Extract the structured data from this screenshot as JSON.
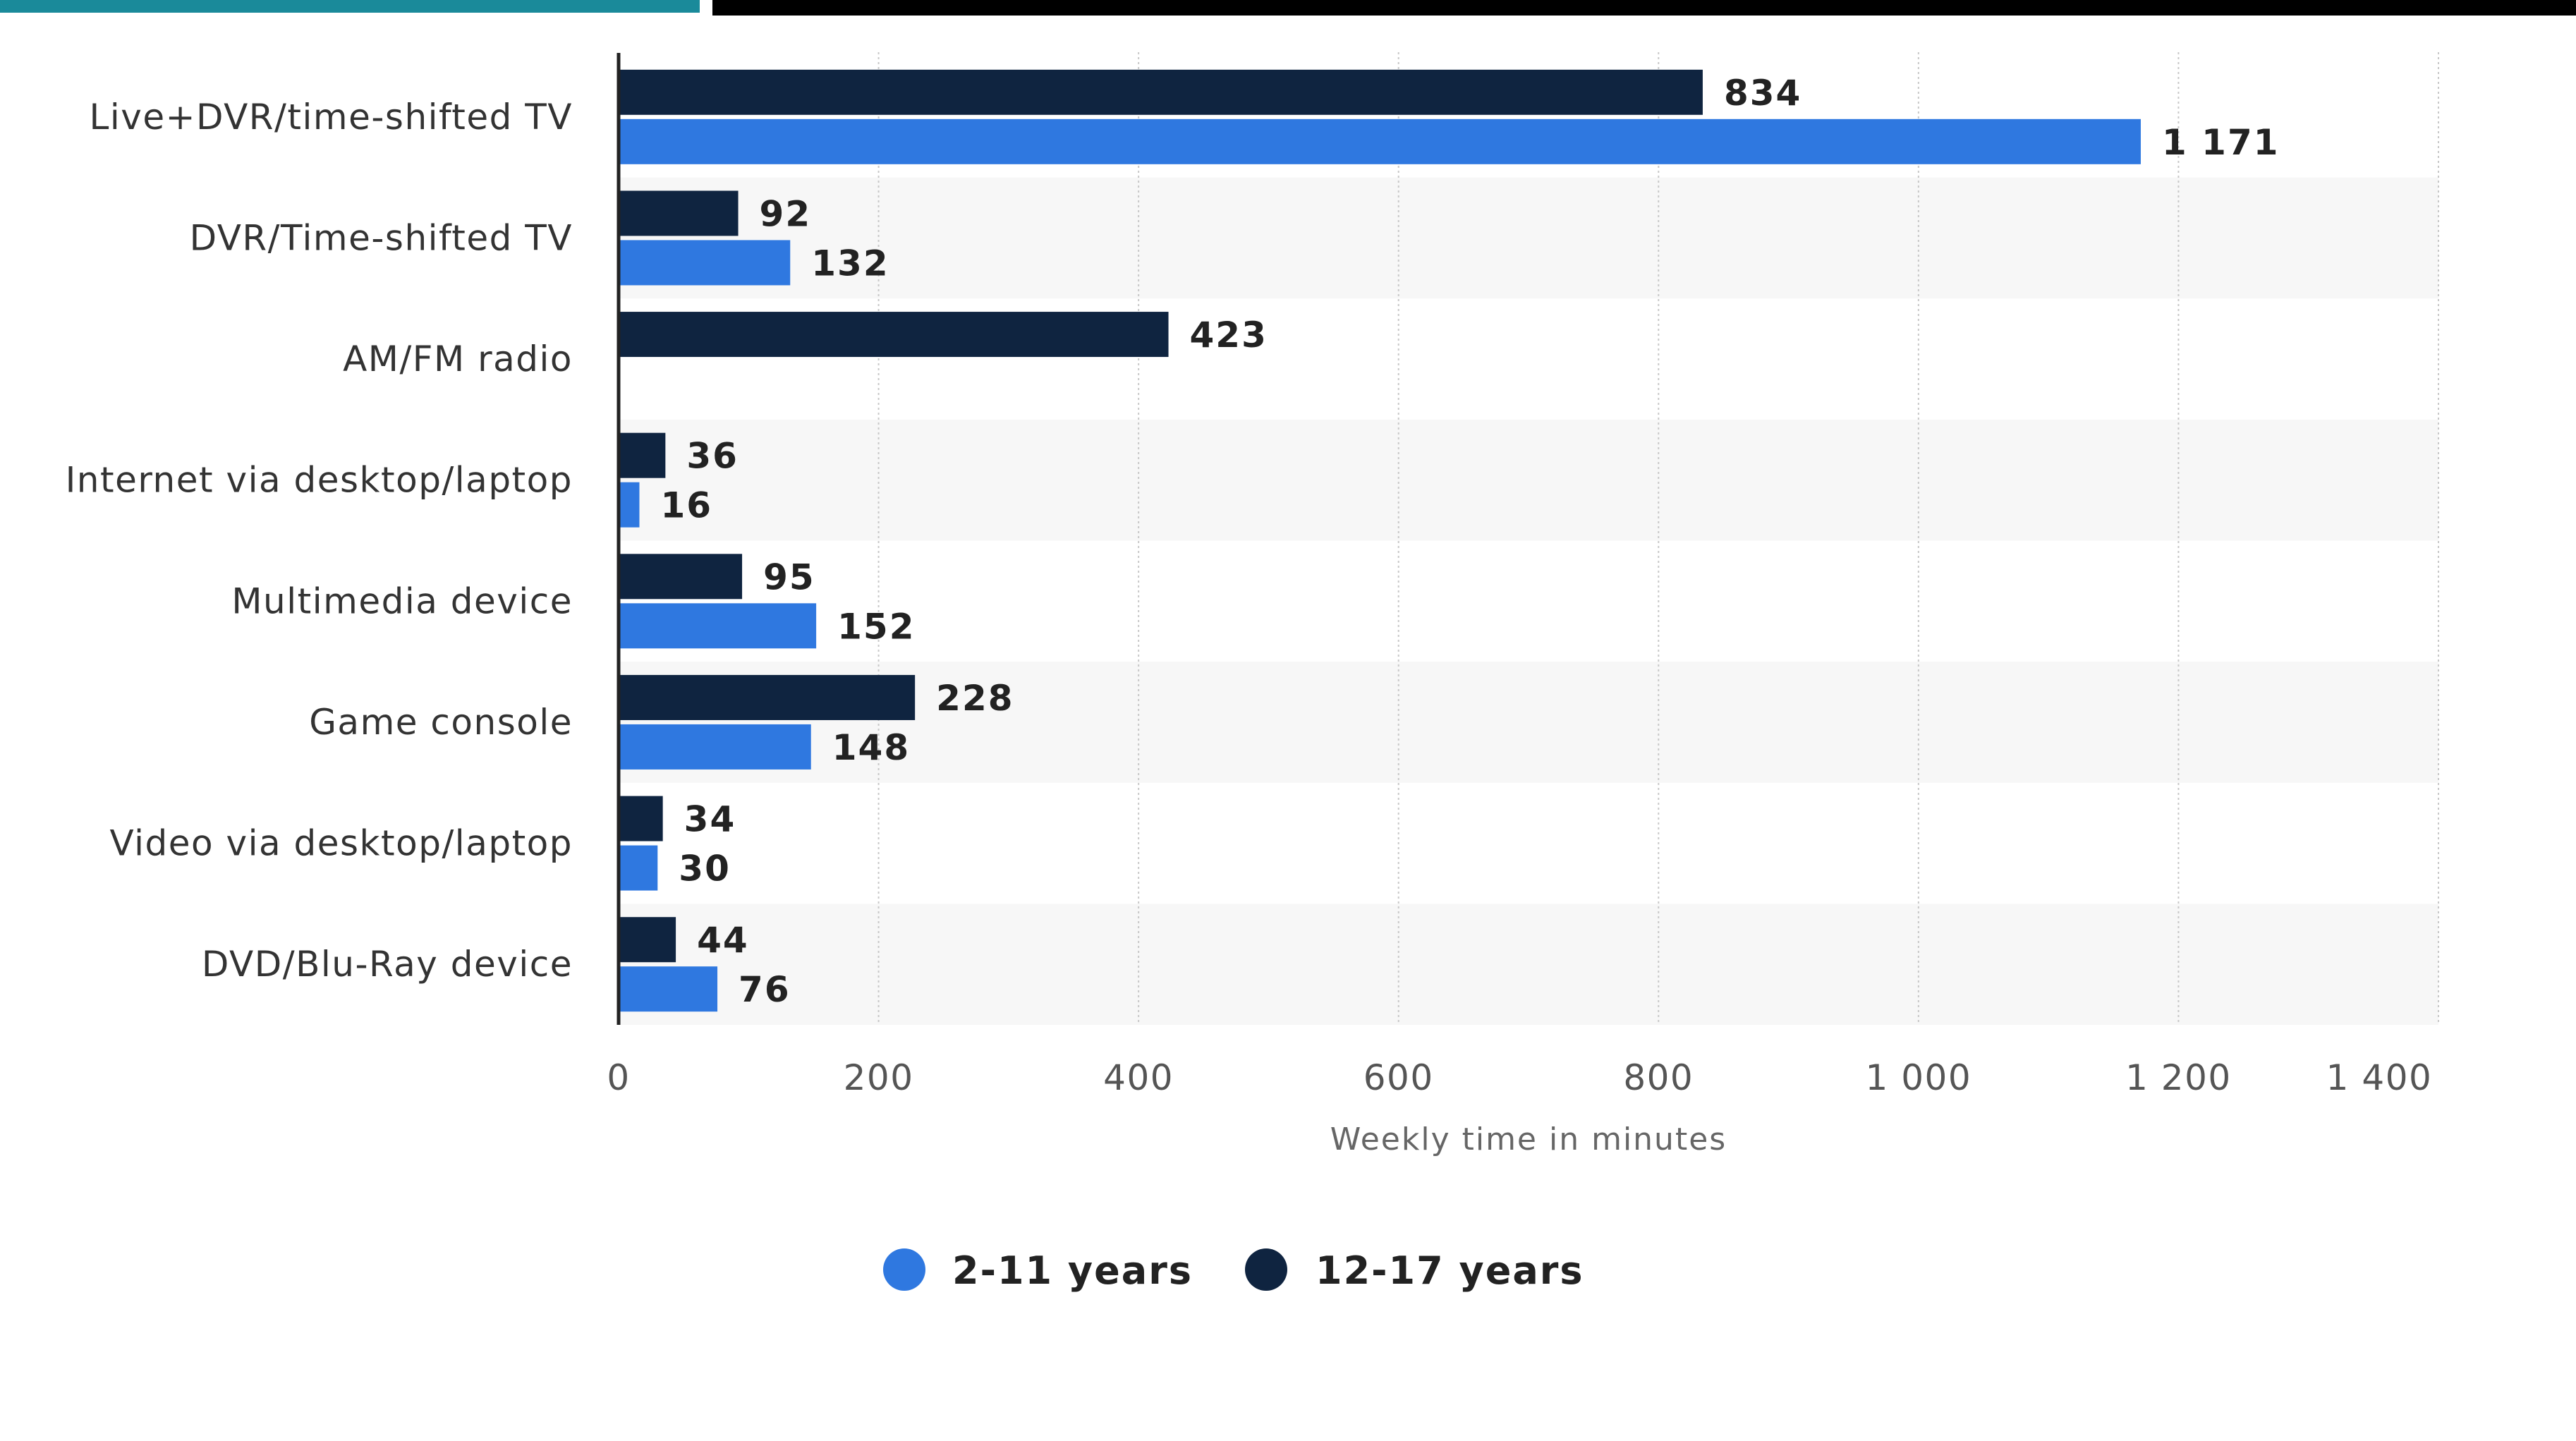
{
  "chart_data": {
    "type": "bar",
    "orientation": "horizontal",
    "categories": [
      "Live+DVR/time-shifted TV",
      "DVR/Time-shifted TV",
      "AM/FM radio",
      "Internet via desktop/laptop",
      "Multimedia device",
      "Game console",
      "Video via desktop/laptop",
      "DVD/Blu-Ray device"
    ],
    "series": [
      {
        "name": "12-17 years",
        "color": "#0f2440",
        "values": [
          834,
          92,
          423,
          36,
          95,
          228,
          34,
          44
        ],
        "labels": [
          "834",
          "92",
          "423",
          "36",
          "95",
          "228",
          "34",
          "44"
        ]
      },
      {
        "name": "2-11 years",
        "color": "#2f78e0",
        "values": [
          1171,
          132,
          null,
          16,
          152,
          148,
          30,
          76
        ],
        "labels": [
          "1 171",
          "132",
          "",
          "16",
          "152",
          "148",
          "30",
          "76"
        ]
      }
    ],
    "xlabel": "Weekly time in minutes",
    "ylabel": "",
    "xlim": [
      0,
      1400
    ],
    "xticks": [
      0,
      200,
      400,
      600,
      800,
      1000,
      1200,
      1400
    ],
    "xtick_labels": [
      "0",
      "200",
      "400",
      "600",
      "800",
      "1 000",
      "1 200",
      "1 400"
    ],
    "grid": true,
    "legend_position": "bottom-center",
    "legend_order": [
      "2-11 years",
      "12-17 years"
    ]
  }
}
